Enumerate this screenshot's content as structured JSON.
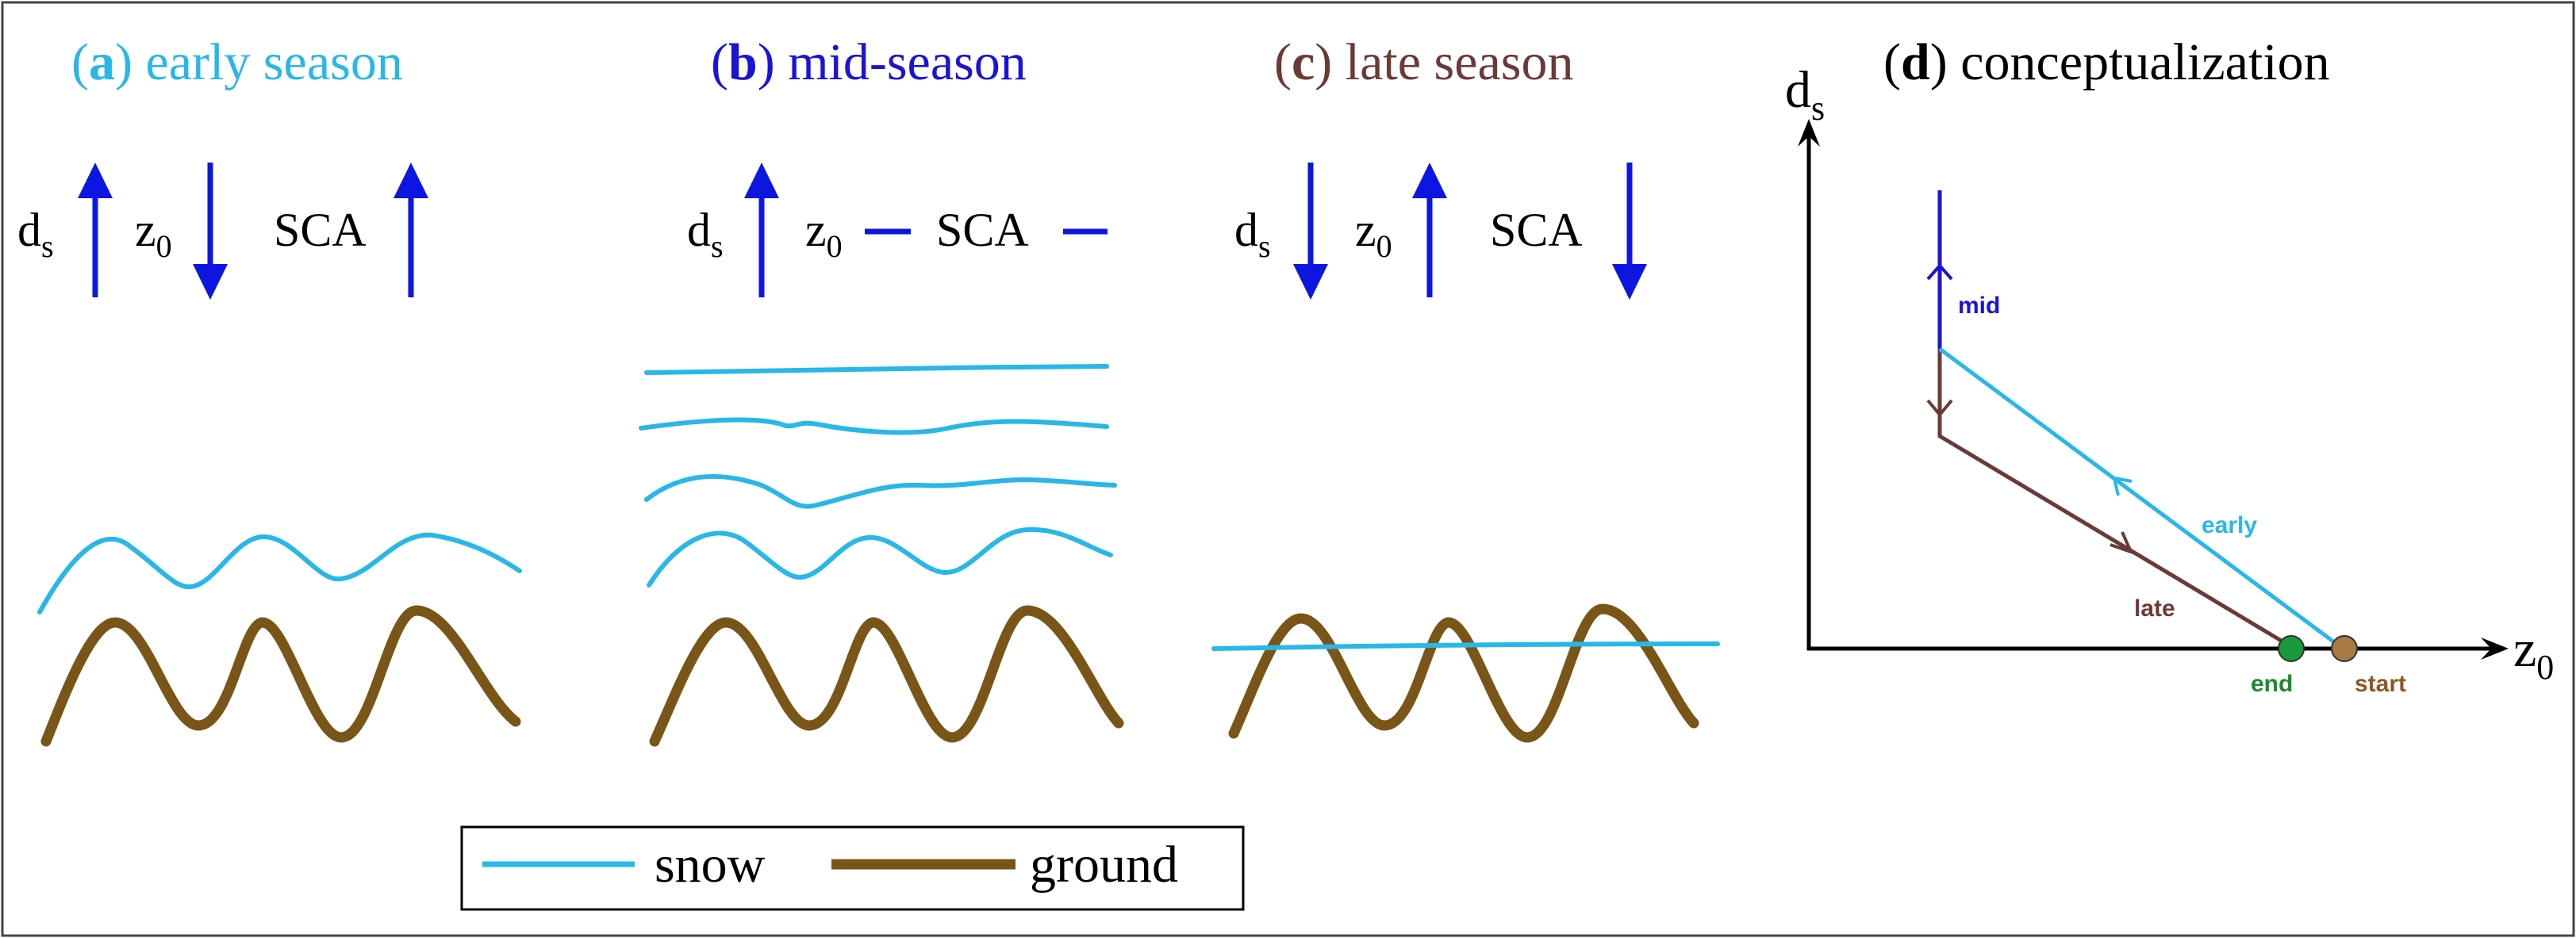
{
  "colors": {
    "early": "#29b7e8",
    "mid": "#1a14d8",
    "late": "#6b3a36",
    "arrow": "#0d16e0",
    "snow": "#29b7e8",
    "ground": "#7a5518",
    "end_dot": "#1a9a3a",
    "start_dot": "#a87a45",
    "end_text": "#1a8a30",
    "start_text": "#8a5a26",
    "axis": "#000000"
  },
  "panels": {
    "a": {
      "letter": "a",
      "title": "early season"
    },
    "b": {
      "letter": "b",
      "title": "mid-season"
    },
    "c": {
      "letter": "c",
      "title": "late season"
    },
    "d": {
      "letter": "d",
      "title": "conceptualization"
    }
  },
  "symbols": {
    "ds_main": "d",
    "ds_sub": "s",
    "z0_main": "z",
    "z0_sub": "0",
    "sca": "SCA"
  },
  "indicators": {
    "a": {
      "ds": "up",
      "z0": "down",
      "sca": "up"
    },
    "b": {
      "ds": "up",
      "z0": "flat",
      "sca": "flat"
    },
    "c": {
      "ds": "down",
      "z0": "up",
      "sca": "down"
    }
  },
  "concept": {
    "y_axis_main": "d",
    "y_axis_sub": "s",
    "x_axis_main": "z",
    "x_axis_sub": "0",
    "label_mid": "mid",
    "label_early": "early",
    "label_late": "late",
    "label_end": "end",
    "label_start": "start"
  },
  "legend": {
    "snow": "snow",
    "ground": "ground"
  }
}
